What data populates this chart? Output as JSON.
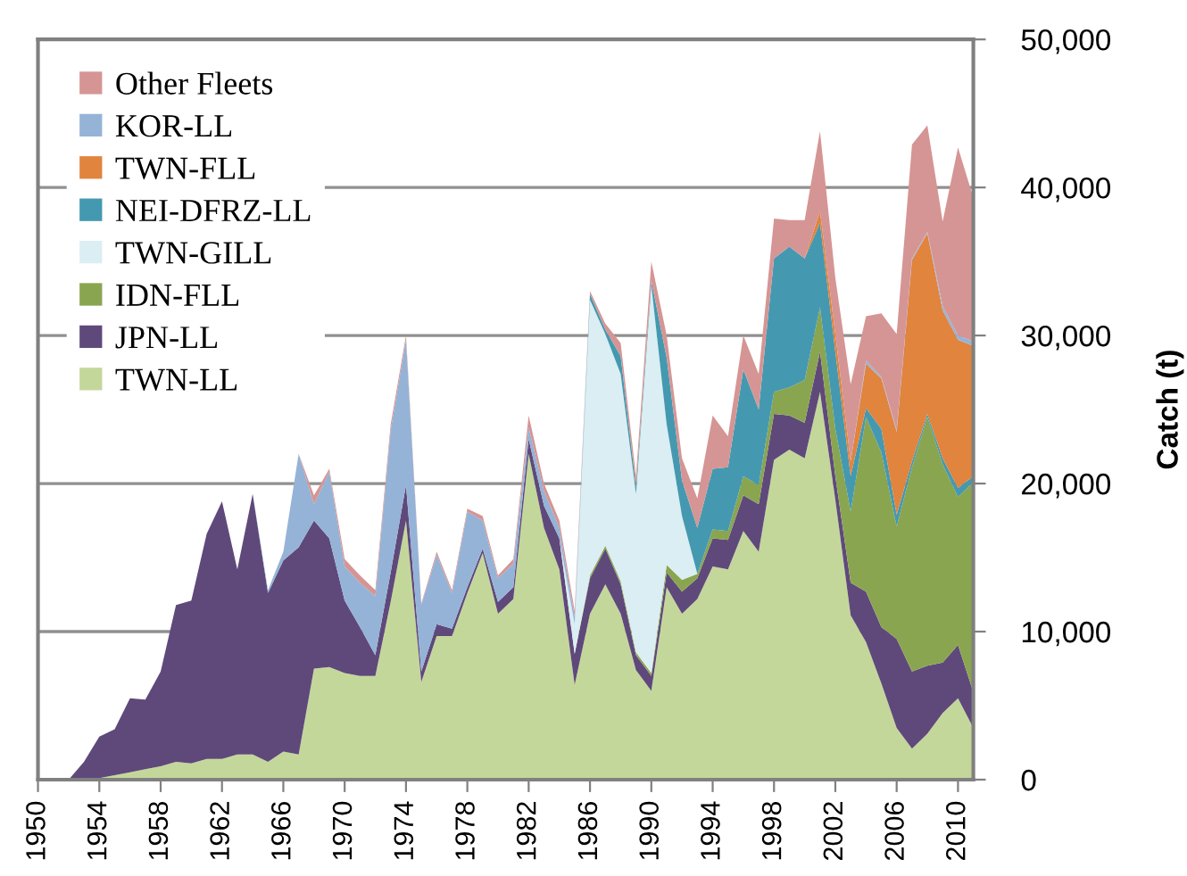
{
  "chart_data": {
    "type": "area",
    "stacked": true,
    "ylabel": "Catch (t)",
    "x": [
      1950,
      1951,
      1952,
      1953,
      1954,
      1955,
      1956,
      1957,
      1958,
      1959,
      1960,
      1961,
      1962,
      1963,
      1964,
      1965,
      1966,
      1967,
      1968,
      1969,
      1970,
      1971,
      1972,
      1973,
      1974,
      1975,
      1976,
      1977,
      1978,
      1979,
      1980,
      1981,
      1982,
      1983,
      1984,
      1985,
      1986,
      1987,
      1988,
      1989,
      1990,
      1991,
      1992,
      1993,
      1994,
      1995,
      1996,
      1997,
      1998,
      1999,
      2000,
      2001,
      2002,
      2003,
      2004,
      2005,
      2006,
      2007,
      2008,
      2009,
      2010,
      2011
    ],
    "xlim": [
      1950,
      2011
    ],
    "xticks": [
      1950,
      1954,
      1958,
      1962,
      1966,
      1970,
      1974,
      1978,
      1982,
      1986,
      1990,
      1994,
      1998,
      2002,
      2006,
      2010
    ],
    "ylim": [
      0,
      50000
    ],
    "yticks": [
      0,
      {
        "value": 10000,
        "label": "10,000"
      },
      {
        "value": 20000,
        "label": "20,000"
      },
      {
        "value": 30000,
        "label": "30,000"
      },
      {
        "value": 40000,
        "label": "40,000"
      },
      {
        "value": 50000,
        "label": "50,000"
      }
    ],
    "grid": "y",
    "legend": "top left",
    "series": [
      {
        "name": "TWN-LL",
        "color": "#c4d79b",
        "values": [
          0,
          0,
          0,
          0,
          100,
          300,
          500,
          700,
          900,
          1200,
          1100,
          1400,
          1400,
          1700,
          1700,
          1200,
          1900,
          1700,
          7500,
          7600,
          7200,
          7000,
          7000,
          12000,
          17500,
          6600,
          9700,
          9700,
          12600,
          15300,
          11200,
          12200,
          22000,
          17000,
          14200,
          6400,
          11200,
          13200,
          11200,
          7400,
          6000,
          13000,
          11200,
          12200,
          14400,
          14200,
          16800,
          15400,
          21600,
          22300,
          21700,
          26200,
          18900,
          11100,
          9300,
          6500,
          3500,
          2100,
          3100,
          4500,
          5500,
          3500
        ]
      },
      {
        "name": "JPN-LL",
        "color": "#5f497a",
        "values": [
          null,
          null,
          0,
          1200,
          2800,
          3100,
          5000,
          4700,
          6400,
          10600,
          11000,
          15200,
          17400,
          12500,
          17600,
          11400,
          12900,
          14000,
          10000,
          8700,
          4900,
          3300,
          1400,
          2000,
          2400,
          700,
          800,
          500,
          400,
          300,
          800,
          800,
          1000,
          1500,
          2100,
          2100,
          2400,
          2400,
          2000,
          1000,
          1000,
          1000,
          1500,
          1400,
          1900,
          2000,
          2400,
          3200,
          3100,
          2300,
          2400,
          2700,
          1600,
          2200,
          3400,
          3800,
          6000,
          5200,
          4600,
          3400,
          3600,
          2400
        ]
      },
      {
        "name": "IDN-FLL",
        "color": "#8aa550",
        "values": [
          null,
          null,
          null,
          null,
          null,
          null,
          null,
          null,
          null,
          null,
          null,
          null,
          null,
          null,
          null,
          null,
          null,
          null,
          null,
          null,
          null,
          null,
          null,
          null,
          null,
          null,
          null,
          null,
          null,
          null,
          null,
          null,
          null,
          null,
          null,
          0,
          200,
          200,
          200,
          200,
          200,
          500,
          800,
          300,
          600,
          600,
          1300,
          1300,
          1500,
          1900,
          2900,
          3000,
          3200,
          4800,
          11800,
          11800,
          7600,
          13800,
          16800,
          13400,
          10000,
          14200
        ]
      },
      {
        "name": "TWN-GILL",
        "color": "#daeef3",
        "values": [
          null,
          null,
          null,
          null,
          null,
          null,
          null,
          null,
          null,
          null,
          null,
          null,
          null,
          null,
          null,
          null,
          null,
          null,
          null,
          null,
          null,
          null,
          null,
          null,
          null,
          null,
          null,
          null,
          null,
          null,
          null,
          null,
          null,
          null,
          0,
          2000,
          18600,
          14300,
          14000,
          10700,
          26200,
          9500,
          4300,
          0,
          null,
          null,
          null,
          null,
          null,
          null,
          null,
          null,
          null,
          null,
          null,
          null,
          null,
          null,
          null,
          null,
          null,
          null
        ]
      },
      {
        "name": "NEI-DFRZ-LL",
        "color": "#4499b0",
        "values": [
          null,
          null,
          null,
          null,
          null,
          null,
          null,
          null,
          null,
          null,
          null,
          null,
          null,
          null,
          null,
          null,
          null,
          null,
          null,
          null,
          null,
          null,
          null,
          null,
          null,
          null,
          null,
          null,
          null,
          null,
          null,
          null,
          null,
          null,
          null,
          0,
          400,
          300,
          1200,
          500,
          300,
          4500,
          2400,
          3100,
          4100,
          4300,
          7200,
          5100,
          9000,
          9500,
          8200,
          5700,
          5200,
          2400,
          600,
          1600,
          800,
          400,
          200,
          400,
          600,
          400
        ]
      },
      {
        "name": "TWN-FLL",
        "color": "#e0843e",
        "values": [
          null,
          null,
          null,
          null,
          null,
          null,
          null,
          null,
          null,
          null,
          null,
          null,
          null,
          null,
          null,
          null,
          null,
          null,
          null,
          null,
          null,
          null,
          null,
          null,
          null,
          null,
          null,
          null,
          null,
          null,
          null,
          null,
          null,
          null,
          null,
          null,
          null,
          null,
          null,
          null,
          null,
          null,
          null,
          null,
          null,
          null,
          null,
          null,
          null,
          null,
          0,
          800,
          1200,
          1000,
          3000,
          3400,
          5600,
          13600,
          12200,
          10000,
          10000,
          8800
        ]
      },
      {
        "name": "KOR-LL",
        "color": "#95b3d7",
        "values": [
          null,
          null,
          null,
          null,
          null,
          null,
          null,
          null,
          null,
          null,
          null,
          null,
          null,
          null,
          0,
          200,
          600,
          6300,
          1100,
          4500,
          2300,
          3000,
          4000,
          9600,
          9800,
          4500,
          4700,
          2400,
          5100,
          1900,
          1600,
          1600,
          800,
          1000,
          700,
          500,
          0,
          null,
          null,
          null,
          null,
          null,
          null,
          null,
          null,
          null,
          null,
          null,
          null,
          null,
          null,
          null,
          null,
          0,
          200,
          100,
          100,
          100,
          100,
          300,
          300,
          300
        ]
      },
      {
        "name": "Other Fleets",
        "color": "#d59594",
        "values": [
          null,
          null,
          null,
          null,
          null,
          null,
          null,
          null,
          null,
          null,
          null,
          null,
          null,
          null,
          null,
          null,
          null,
          0,
          600,
          200,
          500,
          500,
          400,
          400,
          300,
          100,
          200,
          200,
          200,
          300,
          200,
          300,
          800,
          500,
          500,
          400,
          200,
          400,
          900,
          700,
          1300,
          1500,
          1500,
          2000,
          3600,
          2100,
          2300,
          2400,
          2700,
          1800,
          2600,
          5400,
          3800,
          5200,
          3000,
          4300,
          6500,
          7700,
          7200,
          5700,
          12700,
          9700
        ]
      }
    ]
  }
}
